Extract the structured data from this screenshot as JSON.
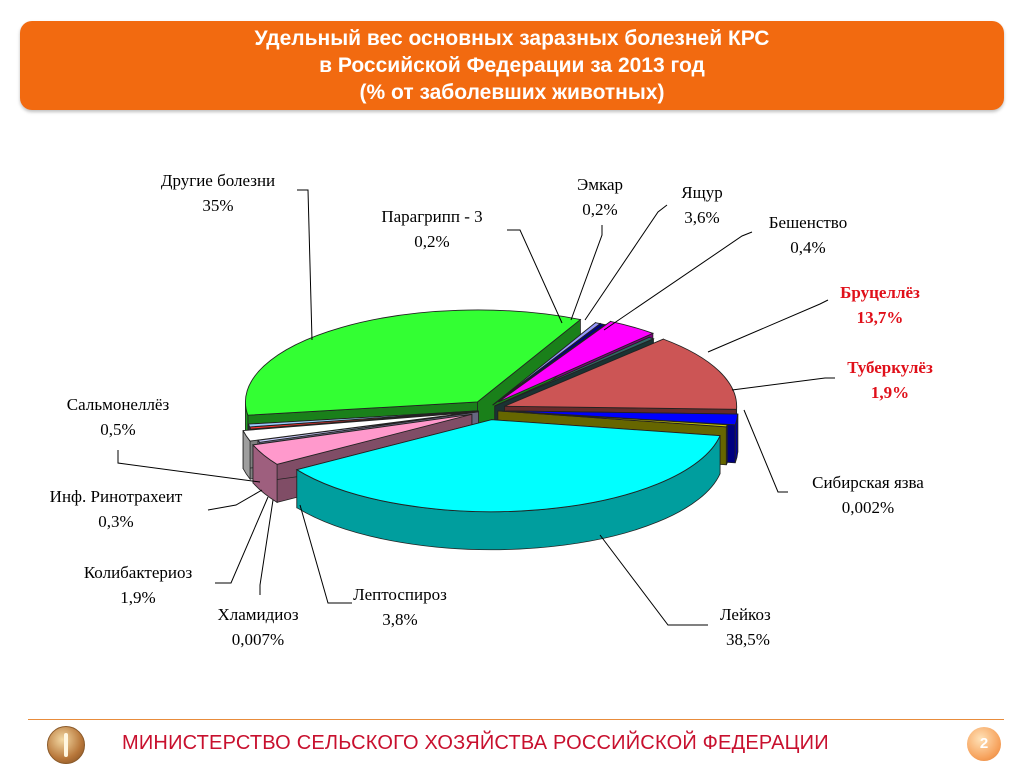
{
  "header": {
    "title_lines": [
      "Удельный вес основных заразных болезней КРС",
      "в Российской Федерации за  2013 год",
      "(% от заболевших животных)"
    ]
  },
  "chart_data": {
    "type": "pie",
    "title": "Удельный вес основных заразных болезней КРС в Российской Федерации за  2013 год (% от заболевших животных)",
    "slices": [
      {
        "name": "Лейкоз",
        "value": 38.5,
        "label": "38,5%",
        "color": "#00ffff",
        "highlight": false
      },
      {
        "name": "Лептоспироз",
        "value": 3.8,
        "label": "3,8%",
        "color": "#ff99cc",
        "highlight": false
      },
      {
        "name": "Хламидиоз",
        "value": 0.007,
        "label": "0,007%",
        "color": "#ccccff",
        "highlight": false
      },
      {
        "name": "Колибактериоз",
        "value": 1.9,
        "label": "1,9%",
        "color": "#ffffff",
        "highlight": false
      },
      {
        "name": "Инф. Ринотрахеит",
        "value": 0.3,
        "label": "0,3%",
        "color": "#ff3333",
        "highlight": false
      },
      {
        "name": "Сальмонеллёз",
        "value": 0.5,
        "label": "0,5%",
        "color": "#99ccff",
        "highlight": false
      },
      {
        "name": "Другие болезни",
        "value": 35,
        "label": "35%",
        "color": "#33ff33",
        "highlight": false
      },
      {
        "name": "Парагрипп - 3",
        "value": 0.2,
        "label": "0,2%",
        "color": "#9999ff",
        "highlight": false
      },
      {
        "name": "Эмкар",
        "value": 0.2,
        "label": "0,2%",
        "color": "#000080",
        "highlight": false
      },
      {
        "name": "Ящур",
        "value": 3.6,
        "label": "3,6%",
        "color": "#ff00ff",
        "highlight": false
      },
      {
        "name": "Бешенство",
        "value": 0.4,
        "label": "0,4%",
        "color": "#336666",
        "highlight": false
      },
      {
        "name": "Бруцеллёз",
        "value": 13.7,
        "label": "13,7%",
        "color": "#cc5555",
        "highlight": true
      },
      {
        "name": "Туберкулёз",
        "value": 1.9,
        "label": "1,9%",
        "color": "#0000ff",
        "highlight": true
      },
      {
        "name": "Сибирская язва",
        "value": 0.002,
        "label": "0,002%",
        "color": "#cccc00",
        "highlight": false
      }
    ]
  },
  "footer": {
    "ministry": "МИНИСТЕРСТВО СЕЛЬСКОГО ХОЗЯЙСТВА РОССИЙСКОЙ ФЕДЕРАЦИИ",
    "page_number": "2",
    "logo_icon": "wheat-emblem-icon"
  }
}
